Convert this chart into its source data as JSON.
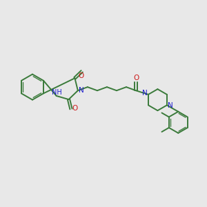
{
  "bg_color": "#e8e8e8",
  "bond_color": "#3a7a3a",
  "N_color": "#1a1acc",
  "O_color": "#cc1a1a",
  "bond_lw": 1.4,
  "inner_lw": 0.95,
  "figsize": [
    3.0,
    3.0
  ],
  "dpi": 100,
  "xlim": [
    0,
    10
  ],
  "ylim": [
    0,
    10
  ]
}
